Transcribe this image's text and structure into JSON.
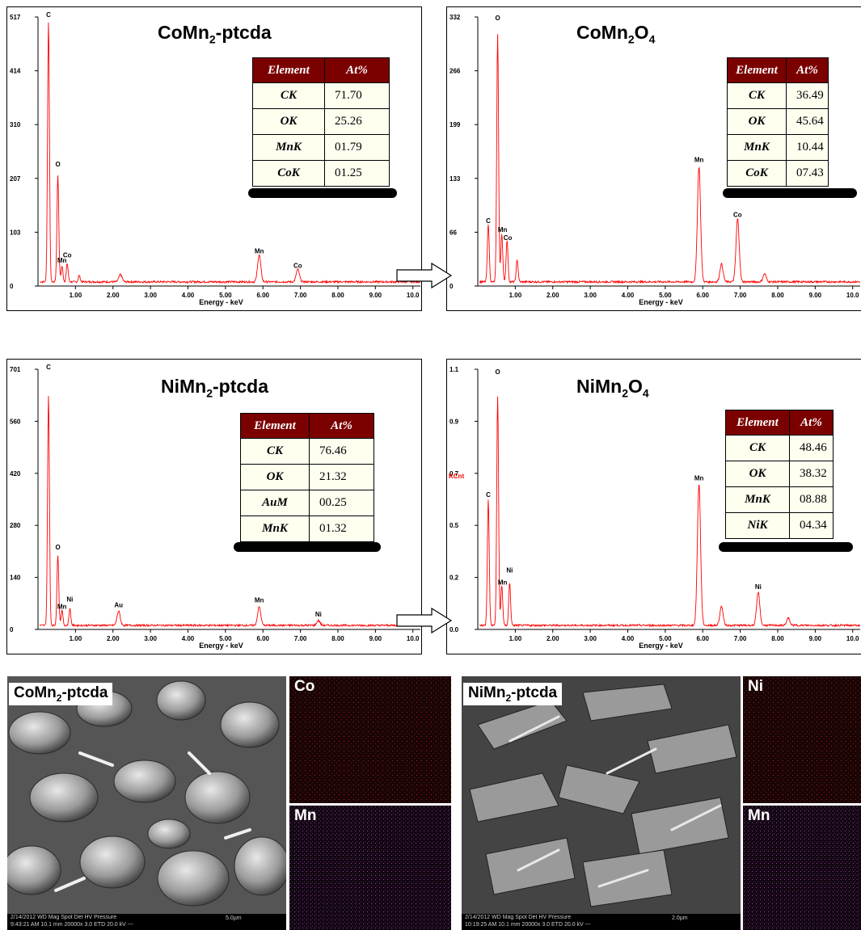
{
  "panels": [
    {
      "title_main": "CoMn",
      "title_sub": "2",
      "title_tail": "-ptcda",
      "title_sub2": "",
      "title_tail2": "",
      "table": {
        "header": [
          "Element",
          "At%"
        ],
        "rows": [
          [
            "CK",
            "71.70"
          ],
          [
            "OK",
            "25.26"
          ],
          [
            "MnK",
            "01.79"
          ],
          [
            "CoK",
            "01.25"
          ]
        ]
      }
    },
    {
      "title_main": "CoMn",
      "title_sub": "2",
      "title_tail": "O",
      "title_sub2": "4",
      "title_tail2": "",
      "table": {
        "header": [
          "Element",
          "At%"
        ],
        "rows": [
          [
            "CK",
            "36.49"
          ],
          [
            "OK",
            "45.64"
          ],
          [
            "MnK",
            "10.44"
          ],
          [
            "CoK",
            "07.43"
          ]
        ]
      }
    },
    {
      "title_main": "NiMn",
      "title_sub": "2",
      "title_tail": "-ptcda",
      "title_sub2": "",
      "title_tail2": "",
      "table": {
        "header": [
          "Element",
          "At%"
        ],
        "rows": [
          [
            "CK",
            "76.46"
          ],
          [
            "OK",
            "21.32"
          ],
          [
            "AuM",
            "00.25"
          ],
          [
            "MnK",
            "01.32"
          ]
        ]
      }
    },
    {
      "title_main": "NiMn",
      "title_sub": "2",
      "title_tail": "O",
      "title_sub2": "4",
      "title_tail2": "",
      "table": {
        "header": [
          "Element",
          "At%"
        ],
        "rows": [
          [
            "CK",
            "48.46"
          ],
          [
            "OK",
            "38.32"
          ],
          [
            "MnK",
            "08.88"
          ],
          [
            "NiK",
            "04.34"
          ]
        ]
      }
    }
  ],
  "chart_data": [
    {
      "type": "line",
      "xlabel": "Energy - keV",
      "ylabel": "",
      "xlim": [
        0,
        10.2
      ],
      "ylim": [
        0,
        517
      ],
      "yticks": [
        "517",
        "414",
        "310",
        "207",
        "103",
        "0"
      ],
      "xticks": [
        "1.00",
        "2.00",
        "3.00",
        "4.00",
        "5.00",
        "6.00",
        "7.00",
        "8.00",
        "9.00",
        "10.0"
      ],
      "peaks": [
        {
          "x": 0.28,
          "y": 500
        },
        {
          "x": 0.53,
          "y": 205
        },
        {
          "x": 0.64,
          "y": 30
        },
        {
          "x": 0.78,
          "y": 35
        },
        {
          "x": 1.1,
          "y": 12
        },
        {
          "x": 2.2,
          "y": 14
        },
        {
          "x": 5.9,
          "y": 52
        },
        {
          "x": 6.93,
          "y": 24
        }
      ],
      "annotations": [
        {
          "text": "C",
          "x": 0.28,
          "y": 517
        },
        {
          "text": "O",
          "x": 0.53,
          "y": 230
        },
        {
          "text": "Co",
          "x": 0.78,
          "y": 55
        },
        {
          "text": "Mn",
          "x": 0.64,
          "y": 45
        },
        {
          "text": "Mn",
          "x": 5.9,
          "y": 63
        },
        {
          "text": "Co",
          "x": 6.93,
          "y": 35
        }
      ]
    },
    {
      "type": "line",
      "xlabel": "Energy - keV",
      "ylabel": "",
      "xlim": [
        0,
        10.2
      ],
      "ylim": [
        0,
        332
      ],
      "yticks": [
        "332",
        "266",
        "199",
        "133",
        "66",
        "0"
      ],
      "xticks": [
        "1.00",
        "2.00",
        "3.00",
        "4.00",
        "5.00",
        "6.00",
        "7.00",
        "8.00",
        "9.00",
        "10.0"
      ],
      "peaks": [
        {
          "x": 0.28,
          "y": 72
        },
        {
          "x": 0.53,
          "y": 305
        },
        {
          "x": 0.64,
          "y": 60
        },
        {
          "x": 0.78,
          "y": 52
        },
        {
          "x": 1.05,
          "y": 27
        },
        {
          "x": 5.9,
          "y": 142
        },
        {
          "x": 6.5,
          "y": 22
        },
        {
          "x": 6.93,
          "y": 78
        },
        {
          "x": 7.65,
          "y": 10
        }
      ],
      "annotations": [
        {
          "text": "O",
          "x": 0.53,
          "y": 328
        },
        {
          "text": "C",
          "x": 0.28,
          "y": 78
        },
        {
          "text": "Mn",
          "x": 0.66,
          "y": 67
        },
        {
          "text": "Co",
          "x": 0.8,
          "y": 57
        },
        {
          "text": "Mn",
          "x": 5.9,
          "y": 153
        },
        {
          "text": "Co",
          "x": 6.93,
          "y": 85
        }
      ]
    },
    {
      "type": "line",
      "xlabel": "Energy - keV",
      "ylabel": "",
      "xlim": [
        0,
        10.2
      ],
      "ylim": [
        0,
        701
      ],
      "yticks": [
        "701",
        "560",
        "420",
        "280",
        "140",
        "0"
      ],
      "xticks": [
        "1.00",
        "2.00",
        "3.00",
        "4.00",
        "5.00",
        "6.00",
        "7.00",
        "8.00",
        "9.00",
        "10.0"
      ],
      "peaks": [
        {
          "x": 0.28,
          "y": 620
        },
        {
          "x": 0.53,
          "y": 190
        },
        {
          "x": 0.64,
          "y": 40
        },
        {
          "x": 0.85,
          "y": 45
        },
        {
          "x": 2.15,
          "y": 38
        },
        {
          "x": 5.9,
          "y": 50
        },
        {
          "x": 7.48,
          "y": 13
        }
      ],
      "annotations": [
        {
          "text": "C",
          "x": 0.28,
          "y": 701
        },
        {
          "text": "O",
          "x": 0.53,
          "y": 215
        },
        {
          "text": "Ni",
          "x": 0.85,
          "y": 75
        },
        {
          "text": "Mn",
          "x": 0.64,
          "y": 55
        },
        {
          "text": "Au",
          "x": 2.15,
          "y": 60
        },
        {
          "text": "Mn",
          "x": 5.9,
          "y": 73
        },
        {
          "text": "Ni",
          "x": 7.48,
          "y": 35
        }
      ]
    },
    {
      "type": "line",
      "xlabel": "Energy - keV",
      "ylabel": "KCnt",
      "xlim": [
        0,
        10.2
      ],
      "ylim": [
        0,
        1.1
      ],
      "yticks": [
        "1.1",
        "0.9",
        "0.7",
        "0.5",
        "0.2",
        "0.0"
      ],
      "xticks": [
        "1.00",
        "2.00",
        "3.00",
        "4.00",
        "5.00",
        "6.00",
        "7.00",
        "8.00",
        "9.00",
        "10.0"
      ],
      "peaks": [
        {
          "x": 0.28,
          "y": 0.53
        },
        {
          "x": 0.53,
          "y": 0.97
        },
        {
          "x": 0.64,
          "y": 0.17
        },
        {
          "x": 0.85,
          "y": 0.18
        },
        {
          "x": 5.9,
          "y": 0.6
        },
        {
          "x": 6.5,
          "y": 0.08
        },
        {
          "x": 7.48,
          "y": 0.14
        },
        {
          "x": 8.28,
          "y": 0.03
        }
      ],
      "annotations": [
        {
          "text": "O",
          "x": 0.53,
          "y": 1.08
        },
        {
          "text": "C",
          "x": 0.28,
          "y": 0.56
        },
        {
          "text": "Ni",
          "x": 0.85,
          "y": 0.24
        },
        {
          "text": "Mn",
          "x": 0.66,
          "y": 0.19
        },
        {
          "text": "Mn",
          "x": 5.9,
          "y": 0.63
        },
        {
          "text": "Ni",
          "x": 7.48,
          "y": 0.17
        }
      ]
    }
  ],
  "micrographs": [
    {
      "label_main": "CoMn",
      "label_sub": "2",
      "label_tail": "-ptcda",
      "info_line1": "2/14/2012    WD     Mag  Spot  Det    HV   Pressure",
      "info_line2": "9:43:21 AM 10.1 mm 20000x  3.0  ETD 20.0 kV    ---",
      "scale_label": "5.0µm",
      "maps": [
        {
          "label": "Co"
        },
        {
          "label": "Mn"
        }
      ]
    },
    {
      "label_main": "NiMn",
      "label_sub": "2",
      "label_tail": "-ptcda",
      "info_line1": "2/14/2012    WD     Mag  Spot  Det    HV   Pressure",
      "info_line2": "10:19:25 AM 10.1 mm 20000x  3.0  ETD 20.0 kV    ---",
      "scale_label": "2.0µm",
      "maps": [
        {
          "label": "Ni"
        },
        {
          "label": "Mn"
        }
      ]
    }
  ],
  "colors": {
    "spectrum": "#ff0000",
    "table_header": "#7b0000",
    "table_body": "#fffff0",
    "map_co": "#8a1010",
    "map_mn": "#7a2a8a",
    "map_ni": "#8a1010"
  }
}
